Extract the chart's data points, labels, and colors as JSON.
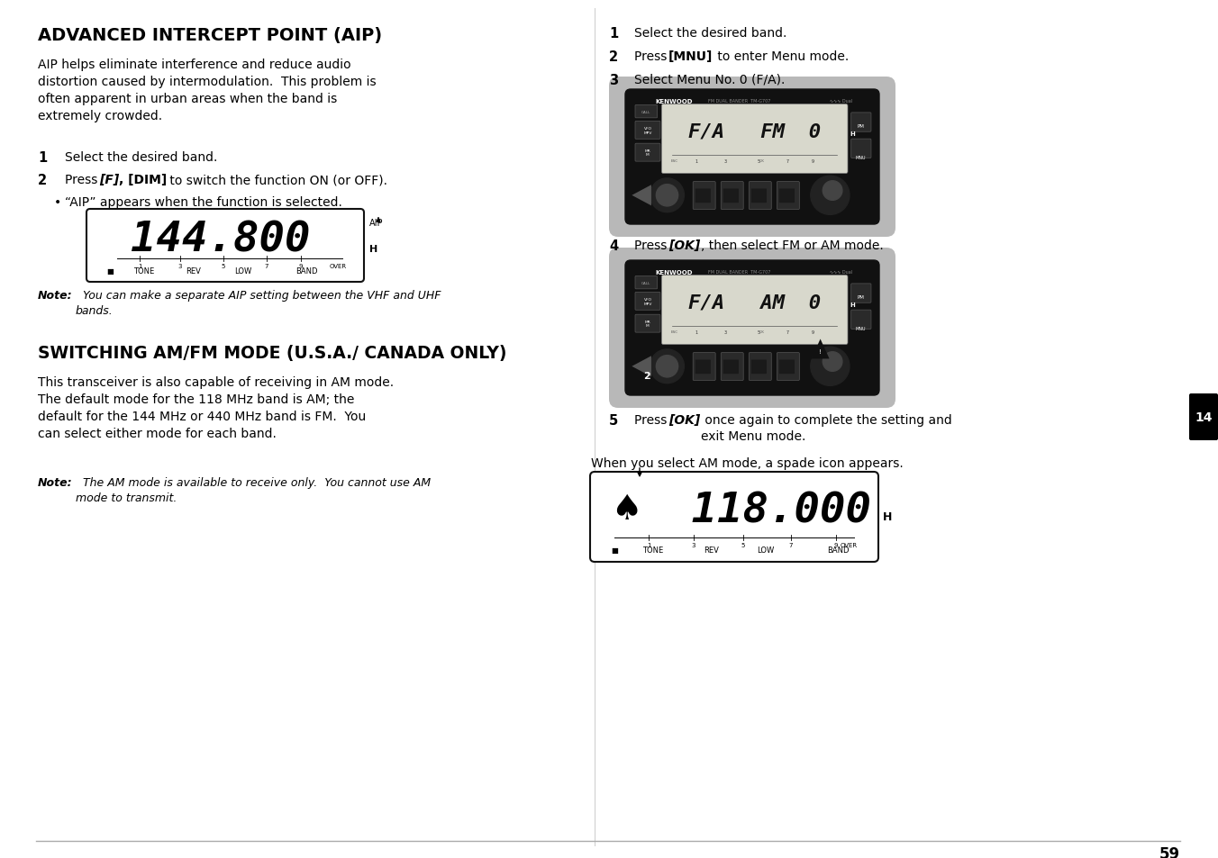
{
  "page_bg": "#ffffff",
  "page_number": "59",
  "title1": "ADVANCED INTERCEPT POINT (AIP)",
  "body1_lines": [
    "AIP helps eliminate interference and reduce audio",
    "distortion caused by intermodulation.  This problem is",
    "often apparent in urban areas when the band is",
    "extremely crowded."
  ],
  "title2": "SWITCHING AM/FM MODE (U.S.A./ CANADA ONLY)",
  "body2_lines": [
    "This transceiver is also capable of receiving in AM mode.",
    "The default mode for the 118 MHz band is AM; the",
    "default for the 144 MHz or 440 MHz band is FM.  You",
    "can select either mode for each band."
  ],
  "note2_lines": [
    "The AM mode is available to receive only.  You cannot use AM",
    "mode to transmit."
  ],
  "note1_lines": [
    "You can make a separate AIP setting between the VHF and UHF",
    "bands."
  ],
  "tab_num": "14",
  "tab_bg": "#000000",
  "tab_text": "#ffffff"
}
